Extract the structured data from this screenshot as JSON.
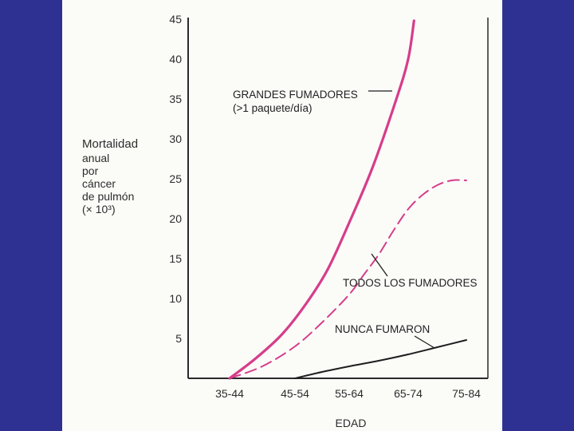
{
  "chart_data": {
    "type": "line",
    "categories": [
      "35-44",
      "45-54",
      "55-64",
      "65-74",
      "75-84"
    ],
    "xlabel": "EDAD",
    "ylabel_lines": [
      "Mortalidad",
      "anual",
      "por",
      "cáncer",
      "de pulmón",
      "(× 10³)"
    ],
    "yticks": [
      5,
      10,
      15,
      20,
      25,
      30,
      35,
      40,
      45
    ],
    "ylim": [
      0,
      45
    ],
    "grid": false,
    "series": [
      {
        "name": "GRANDES FUMADORES",
        "annotation": [
          "GRANDES FUMADORES",
          "(>1 paquete/día)"
        ],
        "color": "#d63d8a",
        "style": "solid",
        "x": [
          0,
          0.4,
          0.8,
          1.2,
          1.6,
          2.0,
          2.4,
          2.8,
          3.0,
          3.1
        ],
        "values": [
          0,
          2.5,
          5.5,
          9.3,
          13.6,
          19.5,
          26.5,
          35.0,
          40.0,
          44.8
        ]
      },
      {
        "name": "TODOS LOS FUMADORES",
        "annotation": [
          "TODOS LOS FUMADORES"
        ],
        "color": "#d63d8a",
        "style": "dashed",
        "x": [
          0,
          0.5,
          1.0,
          1.5,
          2.0,
          2.25,
          2.5,
          2.75,
          3.0,
          3.25,
          3.5,
          3.75,
          4.0
        ],
        "values": [
          0,
          1.5,
          4.0,
          7.0,
          10.5,
          13.0,
          15.5,
          18.5,
          21.2,
          23.0,
          24.2,
          24.8,
          24.8
        ]
      },
      {
        "name": "NUNCA FUMARON",
        "annotation": [
          "NUNCA FUMARON"
        ],
        "color": "#1e1e1e",
        "style": "solid",
        "x": [
          1.0,
          1.5,
          2.0,
          2.5,
          3.0,
          3.5,
          4.0
        ],
        "values": [
          0,
          0.8,
          1.5,
          2.2,
          3.0,
          3.9,
          4.8
        ]
      }
    ]
  }
}
